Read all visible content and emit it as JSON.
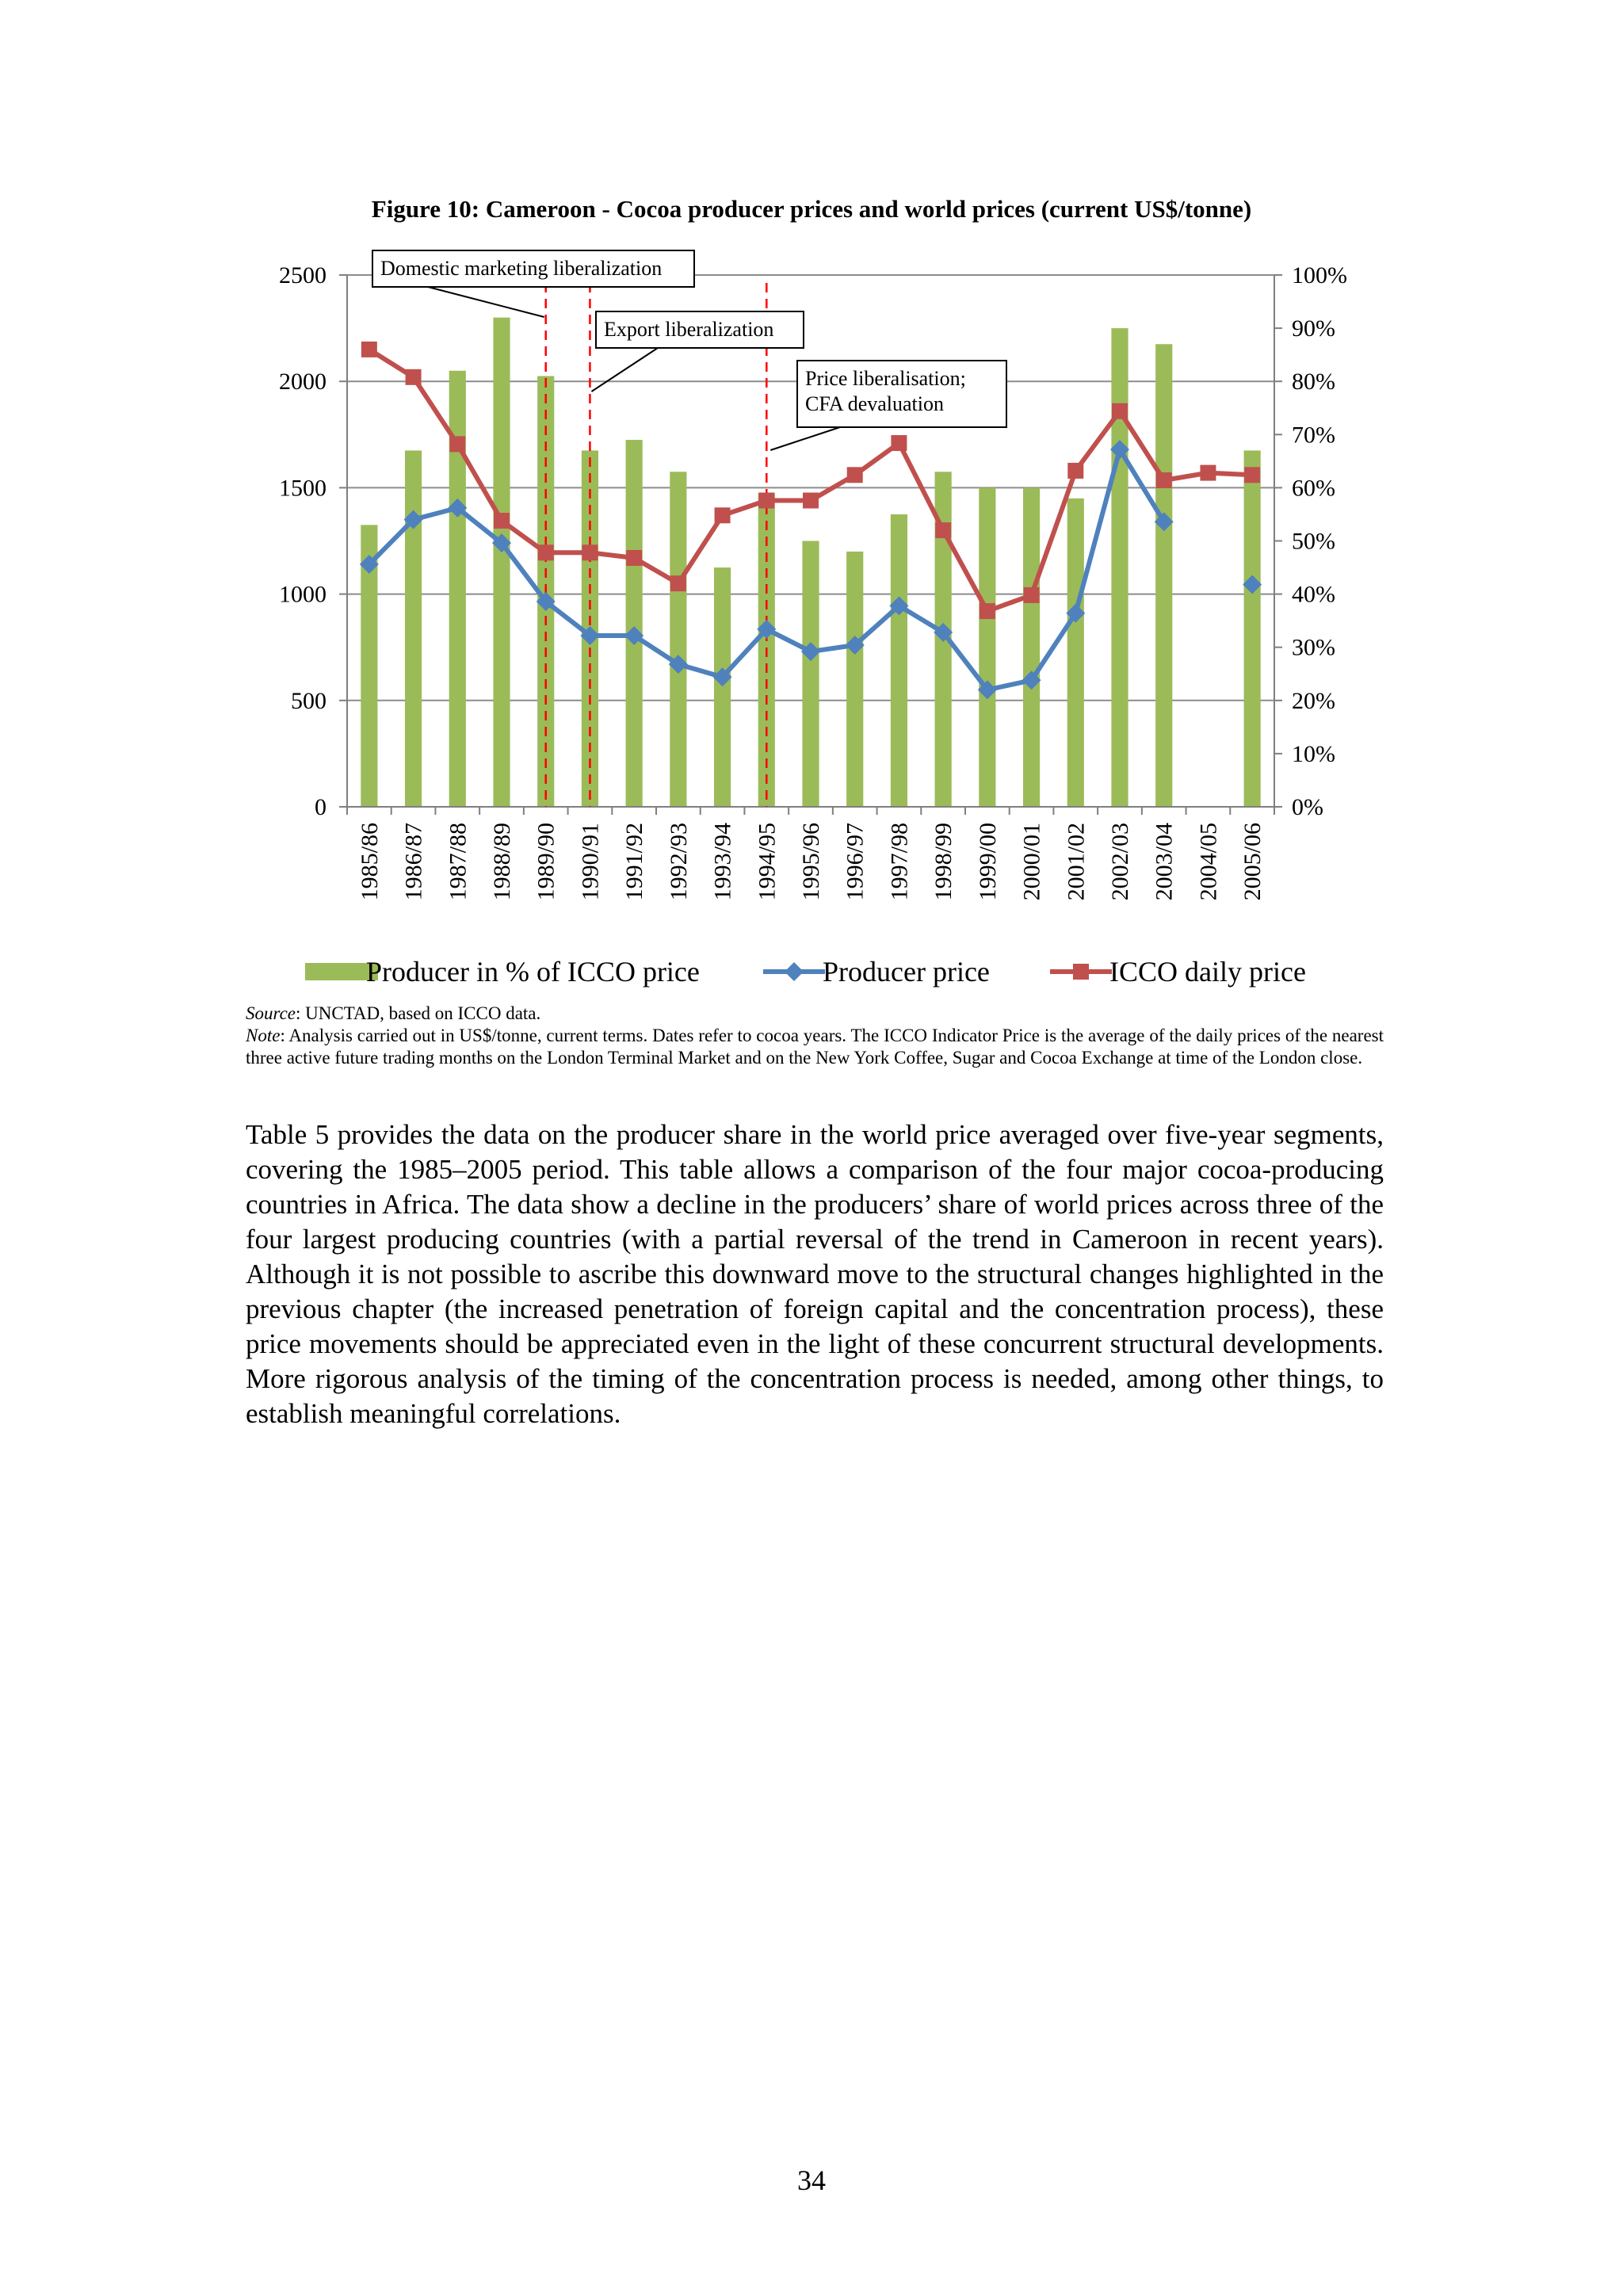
{
  "figure": {
    "title": "Figure 10: Cameroon - Cocoa producer prices and world prices (current US$/tonne)"
  },
  "chart_data": {
    "type": "bar",
    "categories": [
      "1985/86",
      "1986/87",
      "1987/88",
      "1988/89",
      "1989/90",
      "1990/91",
      "1991/92",
      "1992/93",
      "1993/94",
      "1994/95",
      "1995/96",
      "1996/97",
      "1997/98",
      "1998/99",
      "1999/00",
      "2000/01",
      "2001/02",
      "2002/03",
      "2003/04",
      "2004/05",
      "2005/06"
    ],
    "y_left": {
      "ylim": [
        0,
        2500
      ],
      "ticks": [
        "0",
        "500",
        "1000",
        "1500",
        "2000",
        "2500"
      ]
    },
    "y_right": {
      "ylim": [
        0,
        100
      ],
      "ticks": [
        "0%",
        "10%",
        "20%",
        "30%",
        "40%",
        "50%",
        "60%",
        "70%",
        "80%",
        "90%",
        "100%"
      ]
    },
    "series": [
      {
        "name": "Producer in % of ICCO price",
        "type": "bar",
        "axis": "right",
        "color": "#9bbb59",
        "values": [
          53,
          67,
          82,
          92,
          81,
          67,
          69,
          63,
          45,
          59,
          50,
          48,
          55,
          63,
          60,
          60,
          58,
          90,
          87,
          null,
          67
        ]
      },
      {
        "name": "Producer price",
        "type": "line",
        "axis": "left",
        "color": "#4f81bd",
        "marker": "diamond",
        "values": [
          1140,
          1350,
          1405,
          1240,
          965,
          805,
          805,
          670,
          610,
          835,
          730,
          760,
          945,
          820,
          550,
          595,
          910,
          1680,
          1340,
          null,
          1045
        ]
      },
      {
        "name": "ICCO daily price",
        "type": "line",
        "axis": "left",
        "color": "#c0504d",
        "marker": "square",
        "values": [
          2150,
          2020,
          1705,
          1345,
          1195,
          1195,
          1170,
          1050,
          1370,
          1440,
          1440,
          1560,
          1710,
          1300,
          920,
          995,
          1580,
          1860,
          1535,
          1570,
          1560
        ]
      }
    ],
    "events": [
      {
        "label": "Domestic marketing liberalization",
        "at": "1989/90"
      },
      {
        "label": "Export liberalization",
        "at": "1990/91"
      },
      {
        "label_lines": [
          "Price liberalisation;",
          "CFA devaluation"
        ],
        "at": "1994/95"
      }
    ],
    "event_line_color": "#ff0000",
    "legend_position": "bottom",
    "grid": true
  },
  "notes": {
    "source_label": "Source",
    "source_text": ": UNCTAD, based on ICCO data.",
    "note_label": "Note",
    "note_text": ": Analysis carried out in US$/tonne, current terms. Dates refer to cocoa years. The ICCO Indicator Price is the average of the daily prices of the nearest three active future trading months on the London Terminal Market and on the New York Coffee, Sugar and Cocoa Exchange at time of the London close."
  },
  "body_text": "Table 5 provides the data on the producer share in the world price averaged over five-year segments, covering the 1985–2005 period. This table allows a comparison of the four major cocoa-producing countries in Africa. The data show a decline in the producers’ share of world prices across three of the four largest producing countries (with a partial reversal of the trend in Cameroon in recent years). Although it is not possible to ascribe this downward move to the structural changes highlighted in the previous chapter (the increased penetration of foreign capital and the concentration process), these price movements should be appreciated even in the light of these concurrent structural developments. More rigorous analysis of the timing of the concentration process is needed, among other things, to establish meaningful correlations.",
  "page_number": "34"
}
